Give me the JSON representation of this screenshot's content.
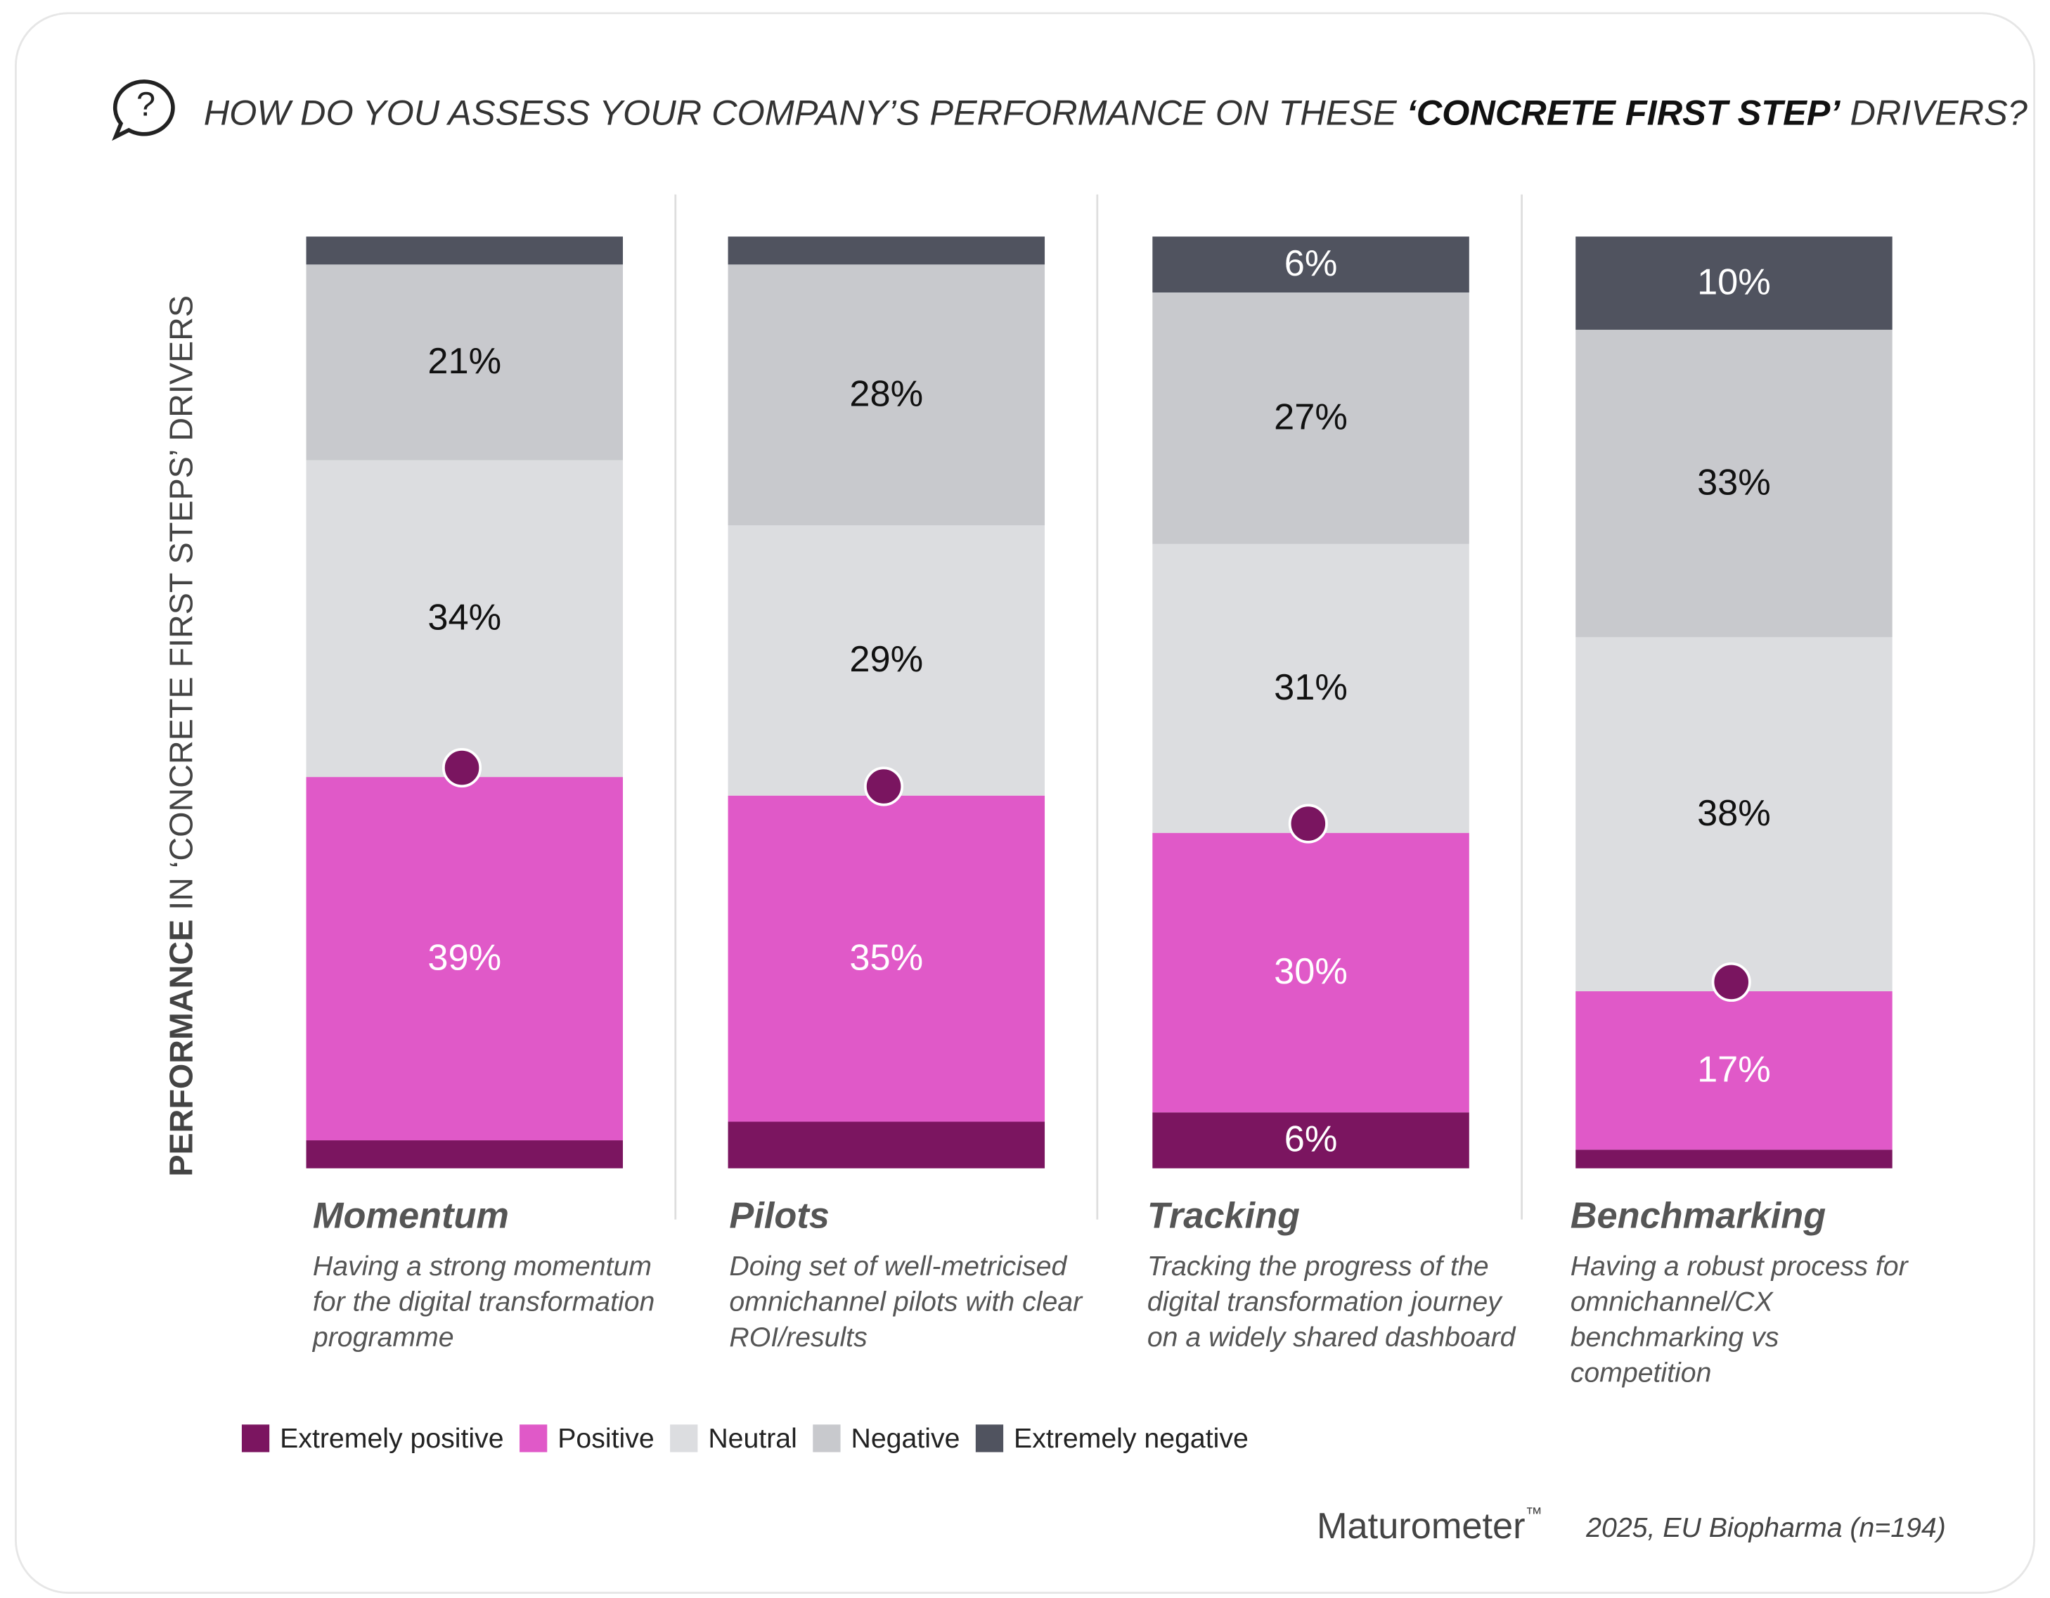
{
  "chart_data": {
    "type": "stacked_bar",
    "title_parts": [
      "HOW DO YOU ASSESS YOUR COMPANY’S PERFORMANCE ON THESE ",
      "‘CONCRETE FIRST STEP’",
      " DRIVERS?"
    ],
    "y_label_parts": [
      "PERFORMANCE",
      " IN ‘CONCRETE FIRST STEPS’ DRIVERS"
    ],
    "categories": [
      "Momentum",
      "Pilots",
      "Tracking",
      "Benchmarking"
    ],
    "descriptions": [
      [
        "Having a strong momentum",
        "for the digital transformation",
        "programme"
      ],
      [
        "Doing set of well-metricised",
        "omnichannel pilots with clear",
        "ROI/results"
      ],
      [
        "Tracking the progress of the",
        "digital transformation journey",
        "on a widely shared dashboard"
      ],
      [
        "Having a robust process for",
        "omnichannel/CX",
        "benchmarking vs",
        "competition"
      ]
    ],
    "ylim": [
      0,
      100
    ],
    "series": [
      {
        "name": "Extremely positive",
        "color": "#7b1560",
        "label_color": "#ffffff",
        "values": [
          3,
          5,
          6,
          2
        ],
        "value_labels": [
          null,
          null,
          "6%",
          null
        ]
      },
      {
        "name": "Positive",
        "color": "#e059c8",
        "label_color": "#ffffff",
        "values": [
          39,
          35,
          30,
          17
        ],
        "value_labels": [
          "39%",
          "35%",
          "30%",
          "17%"
        ]
      },
      {
        "name": "Neutral",
        "color": "#dcdde0",
        "label_color": "#111111",
        "values": [
          34,
          29,
          31,
          38
        ],
        "value_labels": [
          "34%",
          "29%",
          "31%",
          "38%"
        ]
      },
      {
        "name": "Negative",
        "color": "#c8c9cd",
        "label_color": "#111111",
        "values": [
          21,
          28,
          27,
          33
        ],
        "value_labels": [
          "21%",
          "28%",
          "27%",
          "33%"
        ]
      },
      {
        "name": "Extremely negative",
        "color": "#50535f",
        "label_color": "#ffffff",
        "values": [
          3,
          3,
          6,
          10
        ],
        "value_labels": [
          null,
          null,
          "6%",
          "10%"
        ]
      }
    ],
    "markers": {
      "color": "#7a1560",
      "values": [
        42,
        40,
        36,
        19
      ]
    },
    "brand": "Maturometer",
    "brand_mark": "™",
    "source": "2025, EU Biopharma (n=194)"
  }
}
